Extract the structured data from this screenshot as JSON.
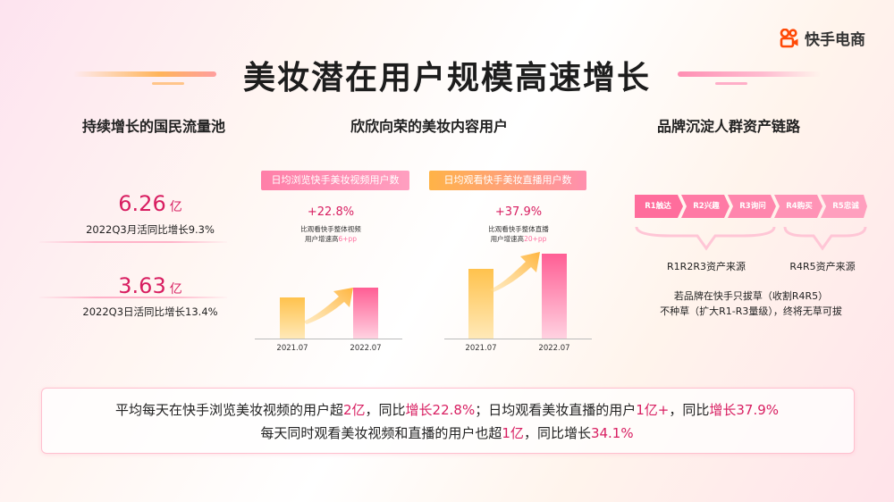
{
  "brand": {
    "logo_text": "快手电商",
    "logo_color": "#ff4906"
  },
  "title": "美妆潜在用户规模高速增长",
  "left": {
    "heading": "持续增长的国民流量池",
    "stats": [
      {
        "value": "6.26",
        "unit": "亿",
        "caption": "2022Q3月活同比增长9.3%"
      },
      {
        "value": "3.63",
        "unit": "亿",
        "caption": "2022Q3日活同比增长13.4%"
      }
    ]
  },
  "middle": {
    "heading": "欣欣向荣的美妆内容用户",
    "charts": [
      {
        "tag": "日均浏览快手美妆视频用户数",
        "growth": "+22.8%",
        "note_line1": "比观看快手整体视频",
        "note_line2_prefix": "用户增速高",
        "note_line2_highlight": "6+pp",
        "x_labels": [
          "2021.07",
          "2022.07"
        ]
      },
      {
        "tag": "日均观看快手美妆直播用户数",
        "growth": "+37.9%",
        "note_line1": "比观看快手整体直播",
        "note_line2_prefix": "用户增速高",
        "note_line2_highlight": "20+pp",
        "x_labels": [
          "2021.07",
          "2022.07"
        ]
      }
    ]
  },
  "right": {
    "heading": "品牌沉淀人群资产链路",
    "steps": [
      "R1触达",
      "R2兴趣",
      "R3询问",
      "R4购买",
      "R5忠诚"
    ],
    "step_colors": [
      "#ff6d9c",
      "#ff7aa5",
      "#ff86ad",
      "#ff93b6",
      "#ff9fbe"
    ],
    "brackets": [
      "R1R2R3资产来源",
      "R4R5资产来源"
    ],
    "strategy_line1": "若品牌在快手只拔草（收割R4R5）",
    "strategy_line2": "不种草（扩大R1-R3量级），终将无草可拔"
  },
  "summary": {
    "line1": [
      {
        "t": "平均每天在快手浏览美妆视频的用户超",
        "hl": false
      },
      {
        "t": "2亿",
        "hl": true
      },
      {
        "t": "，同比",
        "hl": false
      },
      {
        "t": "增长22.8%",
        "hl": true
      },
      {
        "t": "；日均观看美妆直播的用户",
        "hl": false
      },
      {
        "t": "1亿+",
        "hl": true
      },
      {
        "t": "，同比",
        "hl": false
      },
      {
        "t": "增长37.9%",
        "hl": true
      }
    ],
    "line2": [
      {
        "t": "每天同时观看美妆视频和直播的用户也超",
        "hl": false
      },
      {
        "t": "1亿",
        "hl": true
      },
      {
        "t": "，同比增长",
        "hl": false
      },
      {
        "t": "34.1%",
        "hl": true
      }
    ]
  }
}
